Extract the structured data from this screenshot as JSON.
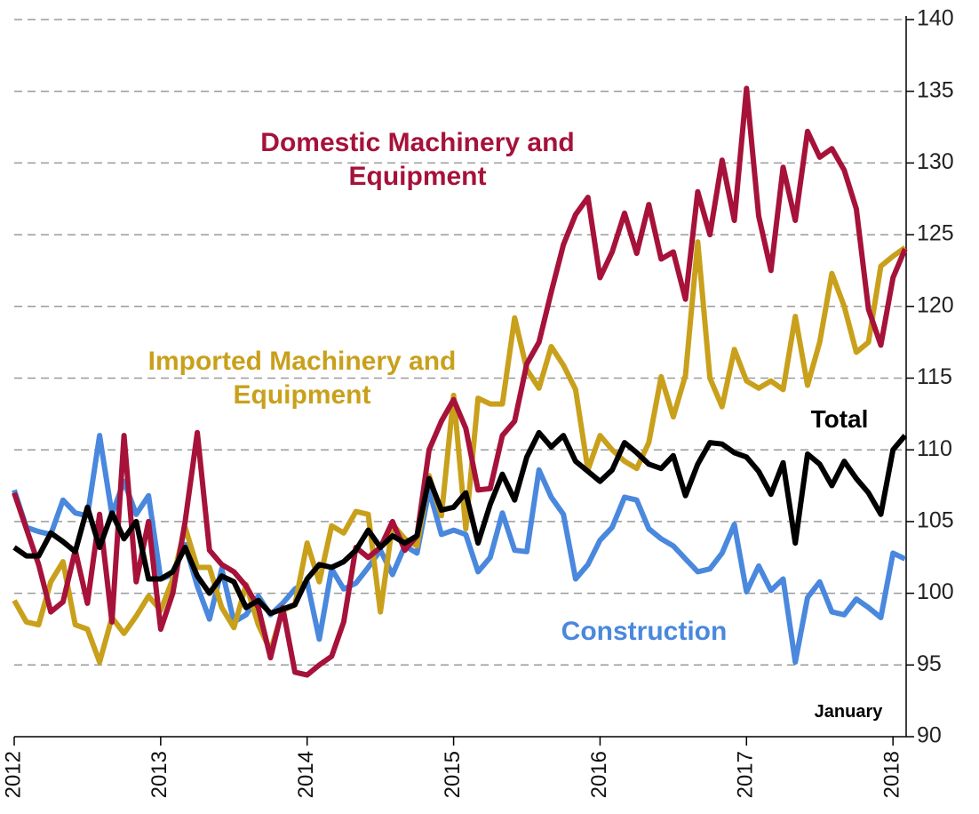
{
  "chart_data": {
    "type": "line",
    "x": [
      2012,
      2012.083,
      2012.167,
      2012.25,
      2012.333,
      2012.417,
      2012.5,
      2012.583,
      2012.667,
      2012.75,
      2012.833,
      2012.917,
      2013,
      2013.083,
      2013.167,
      2013.25,
      2013.333,
      2013.417,
      2013.5,
      2013.583,
      2013.667,
      2013.75,
      2013.833,
      2013.917,
      2014,
      2014.083,
      2014.167,
      2014.25,
      2014.333,
      2014.417,
      2014.5,
      2014.583,
      2014.667,
      2014.75,
      2014.833,
      2014.917,
      2015,
      2015.083,
      2015.167,
      2015.25,
      2015.333,
      2015.417,
      2015.5,
      2015.583,
      2015.667,
      2015.75,
      2015.833,
      2015.917,
      2016,
      2016.083,
      2016.167,
      2016.25,
      2016.333,
      2016.417,
      2016.5,
      2016.583,
      2016.667,
      2016.75,
      2016.833,
      2016.917,
      2017,
      2017.083,
      2017.167,
      2017.25,
      2017.333,
      2017.417,
      2017.5,
      2017.583,
      2017.667,
      2017.75,
      2017.833,
      2017.917,
      2018,
      2018.083
    ],
    "series": [
      {
        "name": "Domestic Machinery and Equipment",
        "color": "#a6123a",
        "values": [
          107,
          104.5,
          102,
          98.7,
          99.4,
          103,
          99.3,
          105.5,
          98,
          111,
          100.8,
          105,
          97.5,
          100,
          105,
          111.2,
          103,
          102,
          101.5,
          100.5,
          99,
          95.5,
          99,
          94.5,
          94.3,
          95,
          95.6,
          98,
          103.2,
          102.5,
          103.2,
          105,
          103,
          104,
          110,
          112,
          113.5,
          111.5,
          107.2,
          107.3,
          111,
          112,
          116,
          117.5,
          121,
          124.3,
          126.4,
          127.6,
          122,
          123.8,
          126.5,
          123.7,
          127.1,
          123.3,
          123.8,
          120.5,
          128,
          125,
          130.2,
          126,
          135.2,
          126.3,
          122.5,
          129.7,
          126,
          132.2,
          130.4,
          131,
          129.5,
          126.8,
          119.8,
          117.3,
          122,
          124
        ]
      },
      {
        "name": "Imported Machinery and Equipment",
        "color": "#c9a01b",
        "values": [
          99.5,
          98,
          97.8,
          100.8,
          102.2,
          97.8,
          97.5,
          95.2,
          98.3,
          97.2,
          98.4,
          99.8,
          98.8,
          101,
          104.6,
          101.8,
          101.8,
          99,
          97.6,
          100.6,
          97.8,
          96,
          98.8,
          99.2,
          103.5,
          100.8,
          104.7,
          104.2,
          105.7,
          105.5,
          98.7,
          104.8,
          103.8,
          103.3,
          108.2,
          105.4,
          113.8,
          104.5,
          113.6,
          113.2,
          113.2,
          119.2,
          115.6,
          114.3,
          117.2,
          115.9,
          114.2,
          108.6,
          111,
          110,
          109.2,
          108.7,
          110.5,
          115.1,
          112.3,
          115.2,
          124.5,
          115,
          113,
          117,
          114.8,
          114.3,
          114.8,
          114.2,
          119.3,
          114.5,
          117.5,
          122.3,
          120,
          116.8,
          117.5,
          122.8,
          123.5,
          124.1
        ]
      },
      {
        "name": "Total",
        "color": "#000000",
        "values": [
          103.2,
          102.6,
          102.6,
          104.2,
          103.6,
          102.9,
          106,
          103.2,
          105.6,
          103.8,
          105,
          101,
          101,
          101.5,
          103.2,
          101.2,
          100,
          101.2,
          100.8,
          99,
          99.5,
          98.6,
          98.9,
          99.2,
          101,
          102,
          101.8,
          102.2,
          103,
          104.4,
          103.2,
          104,
          103.5,
          104,
          108,
          105.8,
          106,
          107,
          103.5,
          106.2,
          108.3,
          106.5,
          109.5,
          111.2,
          110.2,
          111,
          109.2,
          108.5,
          107.8,
          108.6,
          110.5,
          109.8,
          109,
          108.7,
          109.6,
          106.8,
          109,
          110.5,
          110.4,
          109.8,
          109.5,
          108.5,
          106.9,
          109.1,
          103.5,
          109.7,
          109,
          107.5,
          109.2,
          108,
          107,
          105.5,
          110,
          111
        ]
      },
      {
        "name": "Construction",
        "color": "#4a88de",
        "values": [
          107.2,
          104.6,
          104.3,
          104.1,
          106.5,
          105.6,
          105.4,
          111,
          105.5,
          107.8,
          105.5,
          106.8,
          101,
          101.3,
          103.4,
          100.5,
          98.2,
          101.7,
          98,
          98.5,
          99.8,
          98.5,
          99.3,
          100.3,
          100.8,
          96.8,
          101.7,
          100.3,
          100.7,
          101.8,
          103,
          101.3,
          103.3,
          102.8,
          107.2,
          104.1,
          104.4,
          104.1,
          101.5,
          102.5,
          105.6,
          103,
          102.9,
          108.6,
          106.7,
          105.5,
          101,
          102,
          103.7,
          104.6,
          106.7,
          106.5,
          104.5,
          103.8,
          103.3,
          102.4,
          101.5,
          101.7,
          102.8,
          104.8,
          100.1,
          101.9,
          100.2,
          101,
          95.2,
          99.7,
          100.8,
          98.7,
          98.5,
          99.6,
          99,
          98.3,
          102.8,
          102.4
        ]
      }
    ],
    "xlim": [
      2012,
      2018.09
    ],
    "xticks": [
      2012,
      2013,
      2014,
      2015,
      2016,
      2017,
      2018
    ],
    "ylim": [
      90,
      140
    ],
    "yticks": [
      90,
      95,
      100,
      105,
      110,
      115,
      120,
      125,
      130,
      135,
      140
    ],
    "y_axis_side": "right",
    "grid": true,
    "annotations": [
      "January"
    ]
  }
}
